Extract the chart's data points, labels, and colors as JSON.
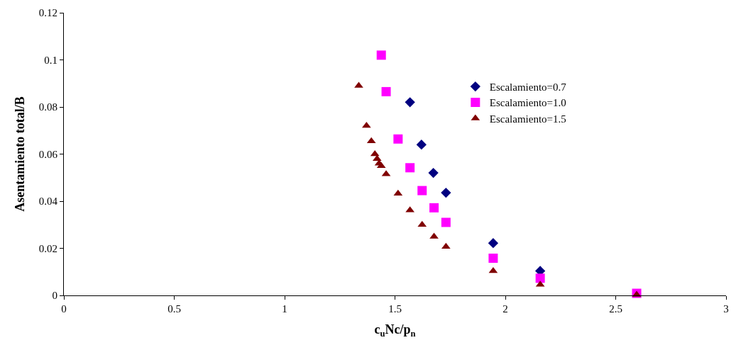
{
  "chart_data": {
    "type": "scatter",
    "xlabel": "c$_{u}$Nc/p$_{n}$",
    "ylabel": "Asentamiento total/B",
    "xlim": [
      0,
      3
    ],
    "xticks": [
      0,
      0.5,
      1,
      1.5,
      2,
      2.5,
      3
    ],
    "ylim": [
      0,
      0.12
    ],
    "yticks": [
      0,
      0.02,
      0.04,
      0.06,
      0.08,
      0.1,
      0.12
    ],
    "grid": false,
    "legend": "top right",
    "series": [
      {
        "name": "Escalamiento=0.7",
        "color": "#000080",
        "marker": "diamond",
        "x": [
          1.568,
          1.62,
          1.674,
          1.731,
          1.945,
          2.158
        ],
        "values": [
          0.082,
          0.064,
          0.052,
          0.0436,
          0.0222,
          0.0104
        ]
      },
      {
        "name": "Escalamiento=1.0",
        "color": "#ff00ff",
        "marker": "square",
        "x": [
          1.438,
          1.46,
          1.514,
          1.568,
          1.623,
          1.677,
          1.731,
          1.945,
          2.158,
          2.595
        ],
        "values": [
          0.102,
          0.0865,
          0.0664,
          0.0542,
          0.0445,
          0.0372,
          0.031,
          0.0158,
          0.0073,
          0.0009
        ]
      },
      {
        "name": "Escalamiento=1.5",
        "color": "#800000",
        "marker": "triangle",
        "x": [
          1.336,
          1.371,
          1.393,
          1.409,
          1.419,
          1.428,
          1.438,
          1.46,
          1.514,
          1.568,
          1.623,
          1.677,
          1.731,
          1.945,
          2.158,
          2.595
        ],
        "values": [
          0.089,
          0.072,
          0.0655,
          0.06,
          0.058,
          0.056,
          0.055,
          0.0515,
          0.0432,
          0.0362,
          0.03,
          0.025,
          0.0207,
          0.0104,
          0.0046,
          0.0003
        ]
      }
    ]
  }
}
